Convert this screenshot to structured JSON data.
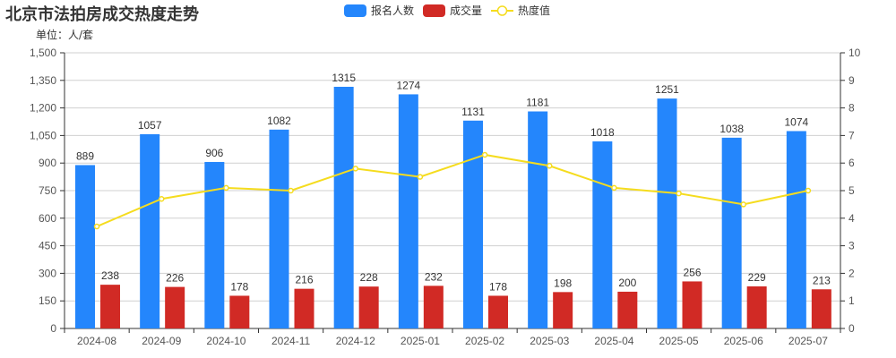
{
  "title": "北京市法拍房成交热度走势",
  "unit_label": "单位：人/套",
  "legend": [
    {
      "label": "报名人数",
      "color": "#2486fc",
      "type": "bar"
    },
    {
      "label": "成交量",
      "color": "#d12a25",
      "type": "bar"
    },
    {
      "label": "热度值",
      "color": "#f5dc1e",
      "type": "line"
    }
  ],
  "chart_data": {
    "type": "bar",
    "title": "北京市法拍房成交热度走势",
    "subtitle": "单位：人/套",
    "xlabel": "",
    "ylabel": "人/套",
    "categories": [
      "2024-08",
      "2024-09",
      "2024-10",
      "2024-11",
      "2024-12",
      "2025-01",
      "2025-02",
      "2025-03",
      "2025-04",
      "2025-05",
      "2025-06",
      "2025-07"
    ],
    "series": [
      {
        "name": "报名人数",
        "type": "bar",
        "axis": "left",
        "color": "#2486fc",
        "values": [
          889,
          1057,
          906,
          1082,
          1315,
          1274,
          1131,
          1181,
          1018,
          1251,
          1038,
          1074
        ]
      },
      {
        "name": "成交量",
        "type": "bar",
        "axis": "left",
        "color": "#d12a25",
        "values": [
          238,
          226,
          178,
          216,
          228,
          232,
          178,
          198,
          200,
          256,
          229,
          213
        ]
      },
      {
        "name": "热度值",
        "type": "line",
        "axis": "right",
        "color": "#f5dc1e",
        "values": [
          3.7,
          4.7,
          5.1,
          5.0,
          5.8,
          5.5,
          6.3,
          5.9,
          5.1,
          4.9,
          4.5,
          5.0
        ]
      }
    ],
    "ylim": [
      0,
      1500
    ],
    "y_ticks": [
      "0",
      "150",
      "300",
      "450",
      "600",
      "750",
      "900",
      "1,050",
      "1,200",
      "1,350",
      "1,500"
    ],
    "y2lim": [
      0,
      10
    ],
    "y2_ticks": [
      "0",
      "1",
      "2",
      "3",
      "4",
      "5",
      "6",
      "7",
      "8",
      "9",
      "10"
    ],
    "grid": true,
    "legend_position": "top-center"
  }
}
